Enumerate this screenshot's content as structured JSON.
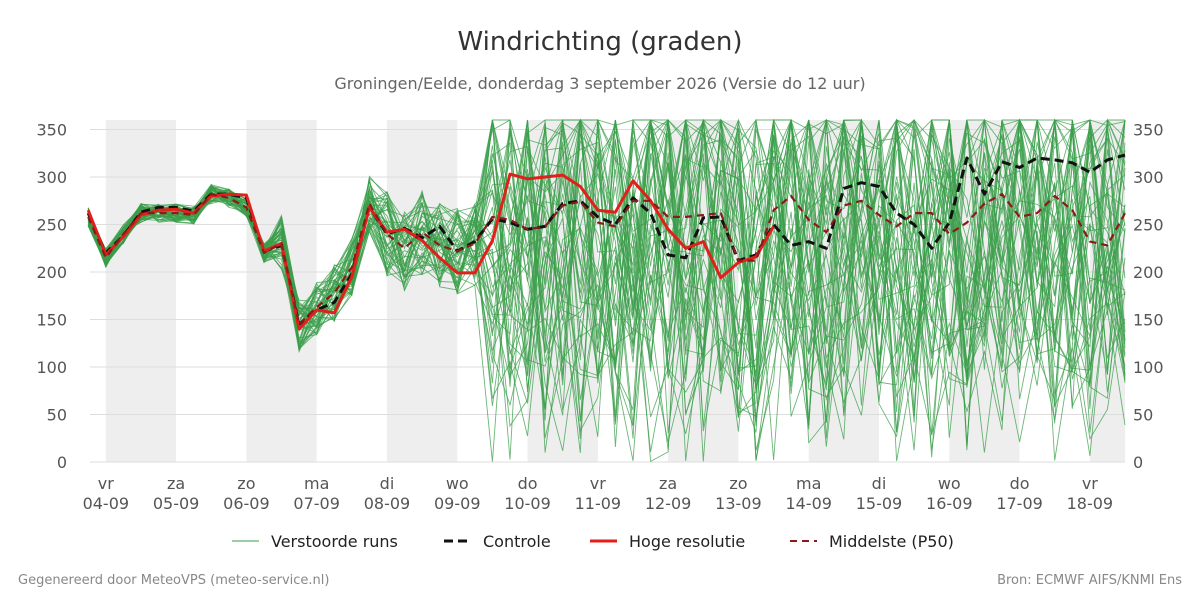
{
  "title": "Windrichting (graden)",
  "subtitle": "Groningen/Eelde, donderdag  3 september 2026 (Versie do 12 uur)",
  "footer_left": "Gegenereerd door MeteoVPS (meteo-service.nl)",
  "footer_right": "Bron: ECMWF AIFS/KNMI Ens",
  "colors": {
    "ensemble": "#3a9d4a",
    "control": "#111111",
    "hires": "#e0201a",
    "median": "#8b1a1a",
    "weekend_band": "#eeeeee",
    "grid": "#dddddd"
  },
  "chart_data": {
    "type": "line",
    "ylim": [
      0,
      360
    ],
    "xlim": [
      -0.225,
      14.5
    ],
    "y_ticks": [
      0,
      50,
      100,
      150,
      200,
      250,
      300,
      350
    ],
    "grid": true,
    "legend_position": "bottom",
    "x_ticks": [
      {
        "x": 0,
        "day": "vr",
        "date": "04-09"
      },
      {
        "x": 1,
        "day": "za",
        "date": "05-09"
      },
      {
        "x": 2,
        "day": "zo",
        "date": "06-09"
      },
      {
        "x": 3,
        "day": "ma",
        "date": "07-09"
      },
      {
        "x": 4,
        "day": "di",
        "date": "08-09"
      },
      {
        "x": 5,
        "day": "wo",
        "date": "09-09"
      },
      {
        "x": 6,
        "day": "do",
        "date": "10-09"
      },
      {
        "x": 7,
        "day": "vr",
        "date": "11-09"
      },
      {
        "x": 8,
        "day": "za",
        "date": "12-09"
      },
      {
        "x": 9,
        "day": "zo",
        "date": "13-09"
      },
      {
        "x": 10,
        "day": "ma",
        "date": "14-09"
      },
      {
        "x": 11,
        "day": "di",
        "date": "15-09"
      },
      {
        "x": 12,
        "day": "wo",
        "date": "16-09"
      },
      {
        "x": 13,
        "day": "do",
        "date": "17-09"
      },
      {
        "x": 14,
        "day": "vr",
        "date": "18-09"
      }
    ],
    "shaded_bands": [
      [
        0,
        1
      ],
      [
        2,
        3
      ],
      [
        4,
        5
      ],
      [
        6,
        7
      ],
      [
        8,
        9
      ],
      [
        10,
        11
      ],
      [
        12,
        13
      ],
      [
        14,
        14.5
      ]
    ],
    "legend": [
      "Verstoorde runs",
      "Controle",
      "Hoge resolutie",
      "Middelste (P50)"
    ],
    "series": [
      {
        "name": "Controle",
        "x": [
          -0.25,
          0,
          0.25,
          0.5,
          0.75,
          1,
          1.25,
          1.5,
          1.75,
          2,
          2.25,
          2.5,
          2.75,
          3,
          3.25,
          3.5,
          3.75,
          4,
          4.25,
          4.5,
          4.75,
          5,
          5.25,
          5.5,
          5.75,
          6,
          6.25,
          6.5,
          6.75,
          7,
          7.25,
          7.5,
          7.75,
          8,
          8.25,
          8.5,
          8.75,
          9,
          9.25,
          9.5,
          9.75,
          10,
          10.25,
          10.5,
          10.75,
          11,
          11.25,
          11.5,
          11.75,
          12,
          12.25,
          12.5,
          12.75,
          13,
          13.25,
          13.5,
          13.75,
          14,
          14.25,
          14.5
        ],
        "y": [
          262,
          220,
          238,
          263,
          268,
          268,
          264,
          282,
          282,
          278,
          222,
          228,
          145,
          160,
          168,
          198,
          268,
          240,
          246,
          236,
          248,
          222,
          232,
          256,
          252,
          245,
          248,
          272,
          275,
          258,
          250,
          278,
          262,
          218,
          215,
          257,
          258,
          212,
          218,
          250,
          228,
          232,
          225,
          288,
          294,
          290,
          262,
          250,
          225,
          252,
          320,
          282,
          316,
          310,
          320,
          318,
          315,
          305,
          318,
          323
        ]
      },
      {
        "name": "Hoge resolutie",
        "x": [
          -0.25,
          0,
          0.25,
          0.5,
          0.75,
          1,
          1.25,
          1.5,
          1.75,
          2,
          2.25,
          2.5,
          2.75,
          3,
          3.25,
          3.5,
          3.75,
          4,
          4.25,
          4.5,
          4.75,
          5,
          5.25,
          5.5,
          5.75,
          6,
          6.25,
          6.5,
          6.75,
          7,
          7.25,
          7.5,
          7.75,
          8,
          8.25,
          8.5,
          8.75,
          9,
          9.25,
          9.5
        ],
        "y": [
          265,
          218,
          237,
          260,
          265,
          266,
          262,
          280,
          282,
          281,
          222,
          230,
          140,
          160,
          157,
          195,
          268,
          242,
          245,
          233,
          215,
          199,
          199,
          233,
          303,
          298,
          300,
          302,
          290,
          265,
          263,
          296,
          275,
          245,
          225,
          232,
          194,
          210,
          216,
          248
        ]
      },
      {
        "name": "Middelste (P50)",
        "x": [
          -0.25,
          0,
          0.25,
          0.5,
          0.75,
          1,
          1.25,
          1.5,
          1.75,
          2,
          2.25,
          2.5,
          2.75,
          3,
          3.25,
          3.5,
          3.75,
          4,
          4.25,
          4.5,
          4.75,
          5,
          5.25,
          5.5,
          5.75,
          6,
          6.25,
          6.5,
          6.75,
          7,
          7.25,
          7.5,
          7.75,
          8,
          8.25,
          8.5,
          8.75,
          9,
          9.25,
          9.5,
          9.75,
          10,
          10.25,
          10.5,
          10.75,
          11,
          11.25,
          11.5,
          11.75,
          12,
          12.25,
          12.5,
          12.75,
          13,
          13.25,
          13.5,
          13.75,
          14,
          14.25,
          14.5
        ],
        "y": [
          258,
          215,
          240,
          262,
          262,
          262,
          260,
          282,
          278,
          268,
          220,
          230,
          145,
          163,
          178,
          205,
          272,
          240,
          225,
          242,
          228,
          222,
          230,
          258,
          255,
          245,
          248,
          270,
          274,
          252,
          248,
          275,
          275,
          258,
          258,
          260,
          262,
          212,
          212,
          265,
          280,
          255,
          242,
          270,
          275,
          260,
          248,
          262,
          262,
          240,
          252,
          272,
          282,
          258,
          262,
          280,
          265,
          232,
          228,
          262
        ]
      },
      {
        "name": "Verstoorde runs",
        "count": 50,
        "min": 0,
        "max": 360
      }
    ]
  }
}
